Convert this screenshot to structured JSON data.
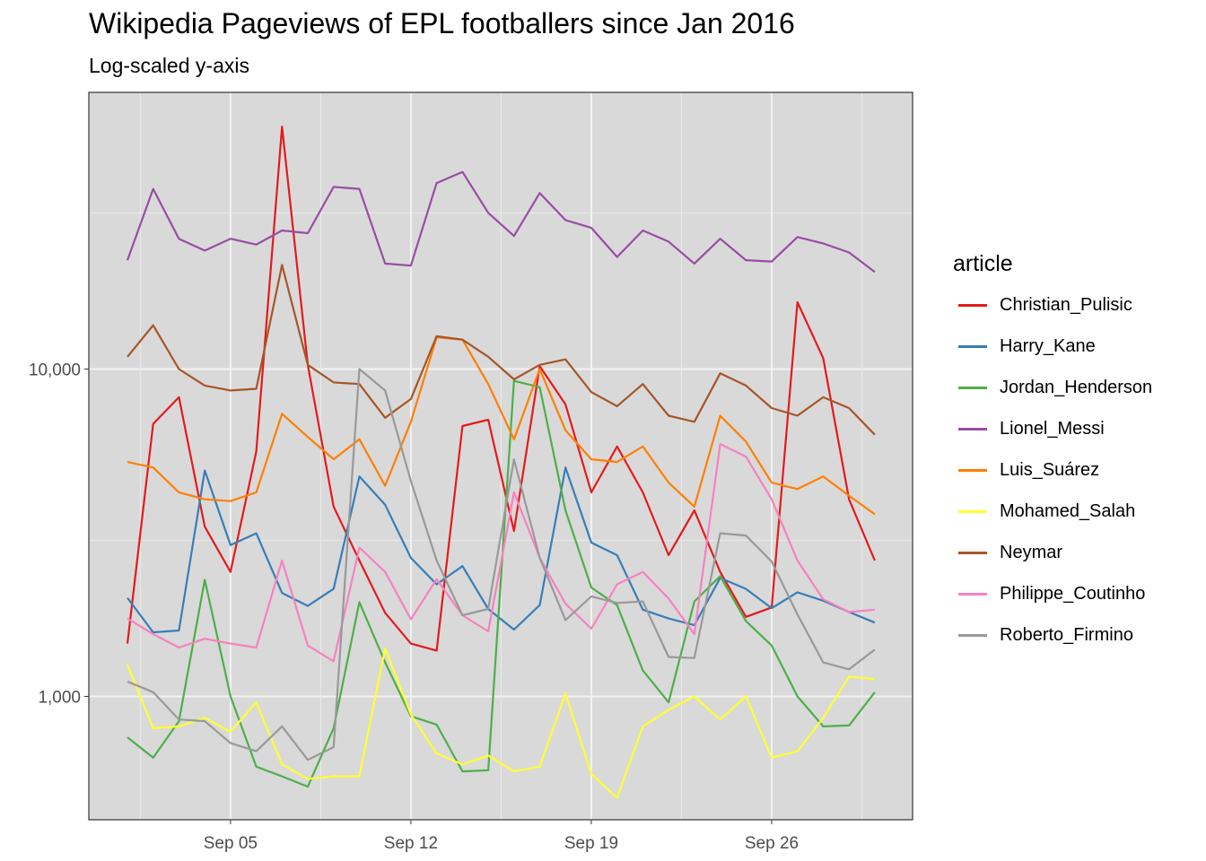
{
  "chart_data": {
    "type": "line",
    "title": "Wikipedia Pageviews of EPL footballers since Jan 2016",
    "subtitle": "Log-scaled y-axis",
    "xlabel": "",
    "ylabel": "",
    "y_scale": "log10",
    "ylim": [
      420,
      70000
    ],
    "y_ticks": [
      1000,
      10000
    ],
    "y_tick_labels": [
      "1,000",
      "10,000"
    ],
    "x_tick_labels": [
      "Sep 05",
      "Sep 12",
      "Sep 19",
      "Sep 26"
    ],
    "x": [
      "2016-09-01",
      "2016-09-02",
      "2016-09-03",
      "2016-09-04",
      "2016-09-05",
      "2016-09-06",
      "2016-09-07",
      "2016-09-08",
      "2016-09-09",
      "2016-09-10",
      "2016-09-11",
      "2016-09-12",
      "2016-09-13",
      "2016-09-14",
      "2016-09-15",
      "2016-09-16",
      "2016-09-17",
      "2016-09-18",
      "2016-09-19",
      "2016-09-20",
      "2016-09-21",
      "2016-09-22",
      "2016-09-23",
      "2016-09-24",
      "2016-09-25",
      "2016-09-26",
      "2016-09-27",
      "2016-09-28",
      "2016-09-29",
      "2016-09-30"
    ],
    "grid": true,
    "legend_position": "right",
    "legend_title": "article",
    "series": [
      {
        "name": "Christian_Pulisic",
        "color": "#E41A1C",
        "values": [
          1450,
          6800,
          8200,
          3300,
          2400,
          5600,
          55000,
          10300,
          3800,
          2600,
          1800,
          1450,
          1380,
          6700,
          7000,
          3200,
          10200,
          7800,
          4200,
          5800,
          4200,
          2700,
          3700,
          2400,
          1750,
          1870,
          16000,
          10800,
          4000,
          2600
        ]
      },
      {
        "name": "Harry_Kane",
        "color": "#377EB8",
        "values": [
          2000,
          1570,
          1590,
          4900,
          2900,
          3150,
          2070,
          1890,
          2130,
          4700,
          3850,
          2650,
          2200,
          2500,
          1850,
          1600,
          1900,
          5000,
          2950,
          2700,
          1840,
          1730,
          1650,
          2300,
          2130,
          1860,
          2080,
          1960,
          1810,
          1680
        ]
      },
      {
        "name": "Jordan_Henderson",
        "color": "#4DAF4A",
        "values": [
          750,
          650,
          840,
          2270,
          1000,
          610,
          570,
          530,
          800,
          1940,
          1270,
          870,
          820,
          590,
          595,
          9200,
          8800,
          3700,
          2150,
          1900,
          1200,
          960,
          1950,
          2330,
          1700,
          1430,
          1000,
          810,
          815,
          1030
        ]
      },
      {
        "name": "Lionel_Messi",
        "color": "#984EA3",
        "values": [
          21500,
          35500,
          25000,
          23000,
          25000,
          24000,
          26500,
          26000,
          36000,
          35500,
          21000,
          20700,
          37000,
          40000,
          30000,
          25500,
          34500,
          28500,
          27000,
          22000,
          26500,
          24500,
          21000,
          25000,
          21500,
          21300,
          25300,
          24200,
          22700,
          19800
        ]
      },
      {
        "name": "Luis_Suárez",
        "color": "#FF7F00",
        "values": [
          5200,
          5000,
          4200,
          4000,
          3950,
          4200,
          7300,
          6200,
          5300,
          6100,
          4400,
          6900,
          12500,
          12300,
          9000,
          6100,
          10000,
          6500,
          5300,
          5200,
          5800,
          4500,
          3800,
          7200,
          6000,
          4500,
          4300,
          4700,
          4100,
          3600
        ]
      },
      {
        "name": "Mohamed_Salah",
        "color": "#FFFF33",
        "values": [
          1250,
          800,
          810,
          860,
          780,
          960,
          620,
          560,
          570,
          570,
          1400,
          880,
          670,
          620,
          660,
          590,
          610,
          1020,
          580,
          490,
          810,
          910,
          1000,
          850,
          1000,
          650,
          680,
          860,
          1150,
          1130
        ]
      },
      {
        "name": "Neymar",
        "color": "#A65628",
        "values": [
          10900,
          13600,
          10000,
          8900,
          8600,
          8700,
          20800,
          10300,
          9100,
          9000,
          7100,
          8100,
          12600,
          12300,
          10900,
          9300,
          10300,
          10700,
          8500,
          7700,
          9000,
          7200,
          6900,
          9700,
          8900,
          7600,
          7200,
          8200,
          7600,
          6300
        ]
      },
      {
        "name": "Philippe_Coutinho",
        "color": "#F781BF",
        "values": [
          1730,
          1550,
          1410,
          1500,
          1450,
          1410,
          2600,
          1430,
          1280,
          2850,
          2400,
          1720,
          2280,
          1770,
          1580,
          4200,
          2650,
          1920,
          1610,
          2200,
          2400,
          1990,
          1550,
          5900,
          5400,
          4000,
          2600,
          1980,
          1810,
          1840
        ]
      },
      {
        "name": "Roberto_Firmino",
        "color": "#999999",
        "values": [
          1110,
          1030,
          850,
          840,
          720,
          680,
          810,
          640,
          700,
          10000,
          8600,
          4550,
          2600,
          1770,
          1850,
          5300,
          2650,
          1710,
          2020,
          1930,
          1950,
          1320,
          1310,
          3150,
          3100,
          2580,
          1780,
          1270,
          1210,
          1390
        ]
      }
    ]
  }
}
